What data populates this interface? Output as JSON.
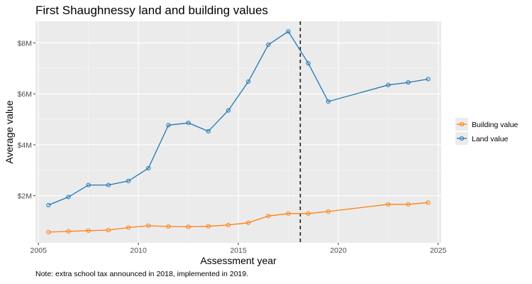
{
  "chart_data": {
    "type": "line",
    "title": "First Shaughnessy land and building values",
    "xlabel": "Assessment year",
    "ylabel": "Average value",
    "note": "Note: extra school tax announced in 2018, implemented in 2019.",
    "xlim": [
      2004.85,
      2025.15
    ],
    "ylim": [
      0.15,
      8.85
    ],
    "x_ticks": [
      2005,
      2010,
      2015,
      2020,
      2025
    ],
    "x_tick_labels": [
      "2005",
      "2010",
      "2015",
      "2020",
      "2025"
    ],
    "y_ticks": [
      2,
      4,
      6,
      8
    ],
    "y_tick_labels": [
      "$2M",
      "$4M",
      "$6M",
      "$8M"
    ],
    "y_unit": "millions of dollars",
    "reference_line": {
      "x": 2018.1,
      "style": "dashed"
    },
    "grid": true,
    "legend_position": "right",
    "series": [
      {
        "name": "Building value",
        "color": "#ff7f0e",
        "x": [
          2005.5,
          2006.5,
          2007.5,
          2008.5,
          2009.5,
          2010.5,
          2011.5,
          2012.5,
          2013.5,
          2014.5,
          2015.5,
          2016.5,
          2017.5,
          2018.5,
          2019.5,
          2022.5,
          2023.5,
          2024.5
        ],
        "values": [
          0.57,
          0.6,
          0.63,
          0.65,
          0.75,
          0.82,
          0.79,
          0.78,
          0.8,
          0.85,
          0.94,
          1.2,
          1.3,
          1.3,
          1.38,
          1.66,
          1.66,
          1.73
        ]
      },
      {
        "name": "Land value",
        "color": "#1f77b4",
        "x": [
          2005.5,
          2006.5,
          2007.5,
          2008.5,
          2009.5,
          2010.5,
          2011.5,
          2012.5,
          2013.5,
          2014.5,
          2015.5,
          2016.5,
          2017.5,
          2018.5,
          2019.5,
          2022.5,
          2023.5,
          2024.5
        ],
        "values": [
          1.63,
          1.95,
          2.42,
          2.42,
          2.58,
          3.08,
          4.77,
          4.86,
          4.53,
          5.35,
          6.48,
          7.93,
          8.45,
          7.2,
          5.7,
          6.35,
          6.45,
          6.58
        ]
      }
    ]
  }
}
